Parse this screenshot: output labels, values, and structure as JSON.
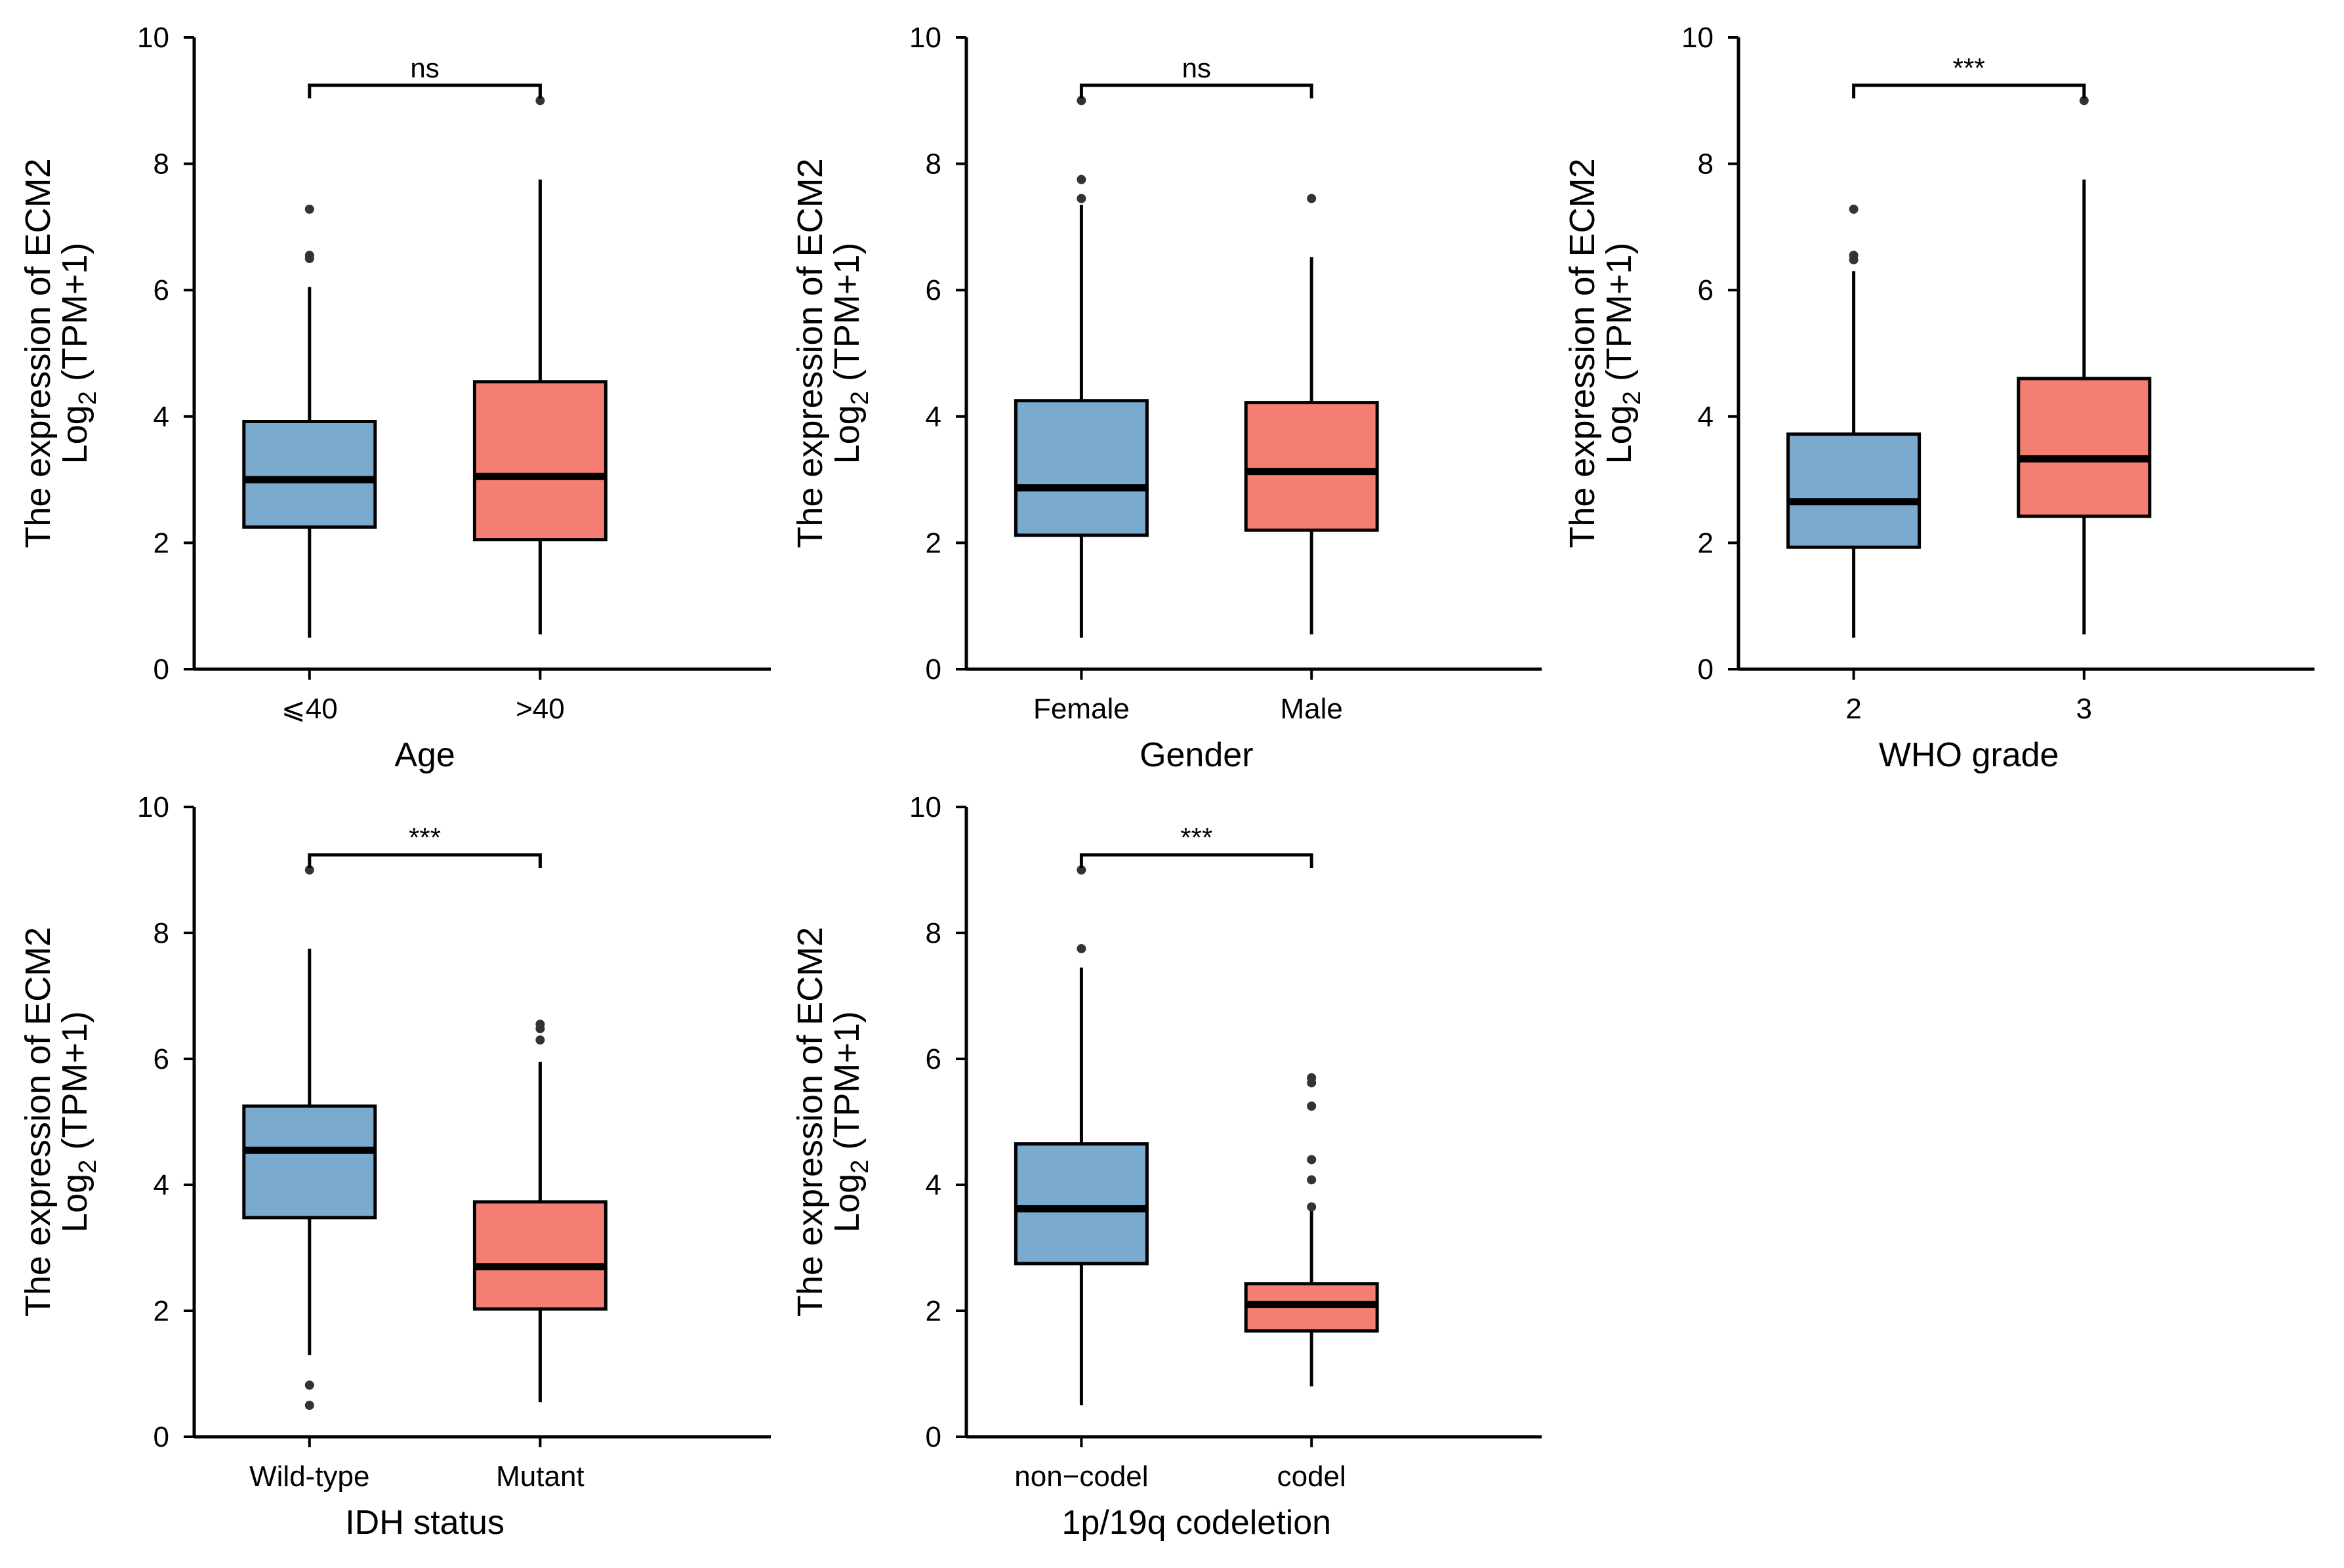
{
  "colors": {
    "group1": "#7BAACF",
    "group2": "#F47E71",
    "outlier": "#333333",
    "line": "#000000"
  },
  "chart_data": [
    {
      "type": "box",
      "ylabel_line1": "The expression of ECM2",
      "ylabel_line2": "Log",
      "ylabel_sub": "2",
      "ylabel_line2_rest": " (TPM+1)",
      "xlabel": "Age",
      "ylim": [
        0,
        10
      ],
      "yticks": [
        "0",
        "2",
        "4",
        "6",
        "8",
        "10"
      ],
      "categories": [
        "⩽40",
        ">40"
      ],
      "significance": "ns",
      "boxes": [
        {
          "q1": 2.25,
          "median": 3.0,
          "q3": 3.92,
          "whisker_low": 0.5,
          "whisker_high": 6.05,
          "outliers": [
            6.5,
            6.55,
            7.28
          ]
        },
        {
          "q1": 2.05,
          "median": 3.05,
          "q3": 4.55,
          "whisker_low": 0.55,
          "whisker_high": 7.75,
          "outliers": [
            9.0
          ]
        }
      ]
    },
    {
      "type": "box",
      "ylabel_line1": "The expression of ECM2",
      "ylabel_line2": "Log",
      "ylabel_sub": "2",
      "ylabel_line2_rest": " (TPM+1)",
      "xlabel": "Gender",
      "ylim": [
        0,
        10
      ],
      "yticks": [
        "0",
        "2",
        "4",
        "6",
        "8",
        "10"
      ],
      "categories": [
        "Female",
        "Male"
      ],
      "significance": "ns",
      "boxes": [
        {
          "q1": 2.12,
          "median": 2.87,
          "q3": 4.25,
          "whisker_low": 0.5,
          "whisker_high": 7.35,
          "outliers": [
            7.45,
            7.75,
            9.0
          ]
        },
        {
          "q1": 2.2,
          "median": 3.13,
          "q3": 4.22,
          "whisker_low": 0.55,
          "whisker_high": 6.52,
          "outliers": [
            7.45
          ]
        }
      ]
    },
    {
      "type": "box",
      "ylabel_line1": "The expression of ECM2",
      "ylabel_line2": "Log",
      "ylabel_sub": "2",
      "ylabel_line2_rest": " (TPM+1)",
      "xlabel": "WHO grade",
      "ylim": [
        0,
        10
      ],
      "yticks": [
        "0",
        "2",
        "4",
        "6",
        "8",
        "10"
      ],
      "categories": [
        "2",
        "3"
      ],
      "significance": "***",
      "boxes": [
        {
          "q1": 1.93,
          "median": 2.65,
          "q3": 3.72,
          "whisker_low": 0.5,
          "whisker_high": 6.3,
          "outliers": [
            6.48,
            6.55,
            7.28
          ]
        },
        {
          "q1": 2.42,
          "median": 3.33,
          "q3": 4.6,
          "whisker_low": 0.55,
          "whisker_high": 7.75,
          "outliers": [
            9.0
          ]
        }
      ]
    },
    {
      "type": "box",
      "ylabel_line1": "The expression of ECM2",
      "ylabel_line2": "Log",
      "ylabel_sub": "2",
      "ylabel_line2_rest": " (TPM+1)",
      "xlabel": "IDH status",
      "ylim": [
        0,
        10
      ],
      "yticks": [
        "0",
        "2",
        "4",
        "6",
        "8",
        "10"
      ],
      "categories": [
        "Wild-type",
        "Mutant"
      ],
      "significance": "***",
      "boxes": [
        {
          "q1": 3.48,
          "median": 4.55,
          "q3": 5.25,
          "whisker_low": 1.3,
          "whisker_high": 7.75,
          "outliers": [
            0.5,
            0.82,
            9.0
          ]
        },
        {
          "q1": 2.03,
          "median": 2.7,
          "q3": 3.73,
          "whisker_low": 0.55,
          "whisker_high": 5.95,
          "outliers": [
            6.3,
            6.48,
            6.55
          ]
        }
      ]
    },
    {
      "type": "box",
      "ylabel_line1": "The expression of ECM2",
      "ylabel_line2": "Log",
      "ylabel_sub": "2",
      "ylabel_line2_rest": " (TPM+1)",
      "xlabel": "1p/19q codeletion",
      "ylim": [
        0,
        10
      ],
      "yticks": [
        "0",
        "2",
        "4",
        "6",
        "8",
        "10"
      ],
      "categories": [
        "non−codel",
        "codel"
      ],
      "significance": "***",
      "boxes": [
        {
          "q1": 2.75,
          "median": 3.62,
          "q3": 4.65,
          "whisker_low": 0.5,
          "whisker_high": 7.45,
          "outliers": [
            7.75,
            9.0
          ]
        },
        {
          "q1": 1.68,
          "median": 2.1,
          "q3": 2.43,
          "whisker_low": 0.8,
          "whisker_high": 3.6,
          "outliers": [
            3.65,
            4.08,
            4.4,
            5.25,
            5.62,
            5.7
          ]
        }
      ]
    }
  ]
}
